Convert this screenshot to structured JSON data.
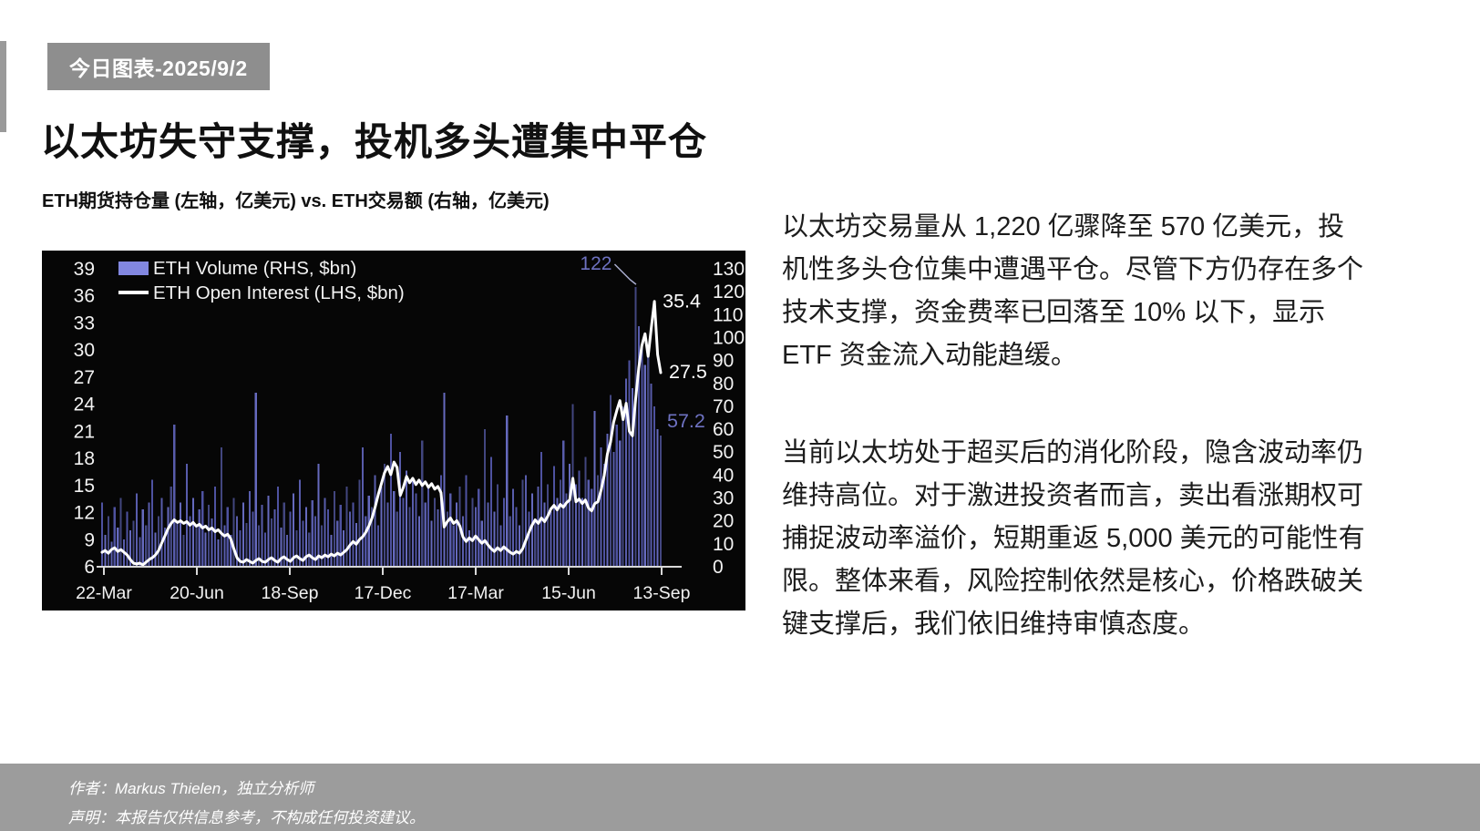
{
  "page": {
    "badge": "今日图表-2025/9/2",
    "title": "以太坊失守支撑，投机多头遭集中平仓",
    "subtitle": "ETH期货持仓量 (左轴，亿美元) vs. ETH交易额 (右轴，亿美元)",
    "paragraph1": "以太坊交易量从 1,220 亿骤降至 570 亿美元，投机性多头仓位集中遭遇平仓。尽管下方仍存在多个技术支撑，资金费率已回落至 10% 以下，显示 ETF 资金流入动能趋缓。",
    "paragraph2": "当前以太坊处于超买后的消化阶段，隐含波动率仍维持高位。对于激进投资者而言，卖出看涨期权可捕捉波动率溢价，短期重返 5,000 美元的可能性有限。整体来看，风险控制依然是核心，价格跌破关键支撑后，我们依旧维持审慎态度。",
    "footer": {
      "author": "作者：Markus Thielen，独立分析师",
      "disclaimer": "声明：本报告仅供信息参考，不构成任何投资建议。"
    }
  },
  "colors": {
    "panel_bg": "#060606",
    "bar_palette": [
      "#4e52a0",
      "#6569bd",
      "#42467f",
      "#585cab"
    ],
    "legend_swatch": "#8287e0",
    "line": "#ffffff",
    "axis_text": "#f2f2f2",
    "axis_line": "#d8d8d8",
    "annotation_purple": "#6e72c2",
    "annotation_white": "#ffffff",
    "pointer_line": "#a9adce",
    "badge_bg": "#8e8e8e",
    "footer_bg": "#9c9c9c"
  },
  "chart_data": {
    "type": "combo-bar-line",
    "title": "ETH期货持仓量 (左轴，亿美元) vs. ETH交易额 (右轴，亿美元)",
    "x_tick_labels": [
      "22-Mar",
      "20-Jun",
      "18-Sep",
      "17-Dec",
      "17-Mar",
      "15-Jun",
      "13-Sep"
    ],
    "left_axis": {
      "label": "ETH Open Interest (LHS, $bn)",
      "min": 6,
      "max": 39,
      "step": 3,
      "tick_labels": [
        39,
        36,
        33,
        30,
        27,
        24,
        21,
        18,
        15,
        12,
        9,
        6
      ]
    },
    "right_axis": {
      "label": "ETH Volume (RHS, $bn)",
      "min": 0,
      "max": 130,
      "step": 10,
      "tick_labels": [
        130,
        120,
        110,
        100,
        90,
        80,
        70,
        60,
        50,
        40,
        30,
        20,
        10,
        0
      ]
    },
    "legend": [
      {
        "label": "ETH Volume (RHS, $bn)",
        "type": "bar"
      },
      {
        "label": "ETH Open Interest (LHS, $bn)",
        "type": "line"
      }
    ],
    "grid": false,
    "series": [
      {
        "name": "ETH Volume (RHS, $bn)",
        "type": "bar",
        "axis": "right",
        "values": [
          28,
          14,
          22,
          11,
          26,
          17,
          30,
          12,
          24,
          16,
          20,
          32,
          13,
          25,
          18,
          28,
          38,
          15,
          22,
          30,
          17,
          26,
          35,
          62,
          20,
          28,
          14,
          45,
          22,
          30,
          18,
          25,
          33,
          15,
          27,
          21,
          35,
          12,
          52,
          18,
          26,
          14,
          30,
          22,
          16,
          28,
          19,
          33,
          24,
          76,
          18,
          27,
          15,
          31,
          21,
          25,
          35,
          17,
          28,
          14,
          24,
          32,
          16,
          38,
          20,
          26,
          15,
          29,
          22,
          45,
          18,
          30,
          25,
          14,
          33,
          20,
          27,
          16,
          35,
          24,
          28,
          19,
          38,
          52,
          22,
          31,
          26,
          40,
          18,
          35,
          45,
          28,
          58,
          33,
          24,
          50,
          30,
          42,
          26,
          38,
          32,
          22,
          55,
          28,
          35,
          20,
          30,
          25,
          40,
          76,
          24,
          32,
          18,
          28,
          35,
          22,
          40,
          16,
          30,
          26,
          34,
          20,
          60,
          28,
          48,
          24,
          36,
          18,
          30,
          66,
          22,
          34,
          26,
          18,
          38,
          40,
          24,
          32,
          20,
          35,
          50,
          28,
          36,
          24,
          44,
          30,
          38,
          55,
          32,
          45,
          71,
          36,
          42,
          30,
          48,
          38,
          34,
          68,
          40,
          52,
          45,
          58,
          75,
          50,
          62,
          55,
          70,
          82,
          90,
          78,
          122,
          105,
          96,
          88,
          92,
          80,
          70,
          60,
          57.2
        ]
      },
      {
        "name": "ETH Open Interest (LHS, $bn)",
        "type": "line",
        "axis": "left",
        "values": [
          7.6,
          7.8,
          7.5,
          7.9,
          8.1,
          7.7,
          7.9,
          7.6,
          7.3,
          6.8,
          6.4,
          6.3,
          6.4,
          6.2,
          6.5,
          6.8,
          7.0,
          7.3,
          7.8,
          8.6,
          9.4,
          10.2,
          10.8,
          11.2,
          10.9,
          11.1,
          10.8,
          11.0,
          10.6,
          10.9,
          10.5,
          10.7,
          10.3,
          10.5,
          10.1,
          10.3,
          9.9,
          10.1,
          9.7,
          9.4,
          9.6,
          9.1,
          8.0,
          7.0,
          6.6,
          6.5,
          6.8,
          6.6,
          6.4,
          6.7,
          6.9,
          6.6,
          6.5,
          6.8,
          7.0,
          6.7,
          6.5,
          6.9,
          7.1,
          6.8,
          6.6,
          7.0,
          7.2,
          6.9,
          6.7,
          7.1,
          7.3,
          7.0,
          6.8,
          7.2,
          7.0,
          7.3,
          7.1,
          7.4,
          7.2,
          7.5,
          7.3,
          7.6,
          7.9,
          8.4,
          8.8,
          8.5,
          9.0,
          9.3,
          9.8,
          10.5,
          11.4,
          12.6,
          14.0,
          15.2,
          16.4,
          17.1,
          16.2,
          17.6,
          17.0,
          13.9,
          14.8,
          16.0,
          15.3,
          15.8,
          15.1,
          15.6,
          15.0,
          15.4,
          14.8,
          15.2,
          14.6,
          14.9,
          14.2,
          10.4,
          11.0,
          11.4,
          10.8,
          11.1,
          10.5,
          9.3,
          8.8,
          9.2,
          8.9,
          9.4,
          9.0,
          8.6,
          8.9,
          8.4,
          8.0,
          7.7,
          8.1,
          7.8,
          8.2,
          7.9,
          7.6,
          7.4,
          7.7,
          7.5,
          8.0,
          8.9,
          9.8,
          10.6,
          11.2,
          10.8,
          11.4,
          11.0,
          11.6,
          12.4,
          12.8,
          12.3,
          12.9,
          12.6,
          13.1,
          13.4,
          15.8,
          13.2,
          13.5,
          13.0,
          13.4,
          12.5,
          12.2,
          13.0,
          13.2,
          14.5,
          16.1,
          18.5,
          19.8,
          22.0,
          23.3,
          24.4,
          22.3,
          24.1,
          21.0,
          20.5,
          24.5,
          28.0,
          30.5,
          31.8,
          29.3,
          32.5,
          35.4,
          29.5,
          27.5
        ]
      }
    ],
    "annotations": [
      {
        "text": "122",
        "target": "bar-peak",
        "color": "#6e72c2"
      },
      {
        "text": "35.4",
        "target": "line-peak",
        "color": "#ffffff"
      },
      {
        "text": "27.5",
        "target": "line-end",
        "color": "#ffffff"
      },
      {
        "text": "57.2",
        "target": "last-bar",
        "color": "#6e72c2"
      }
    ]
  }
}
